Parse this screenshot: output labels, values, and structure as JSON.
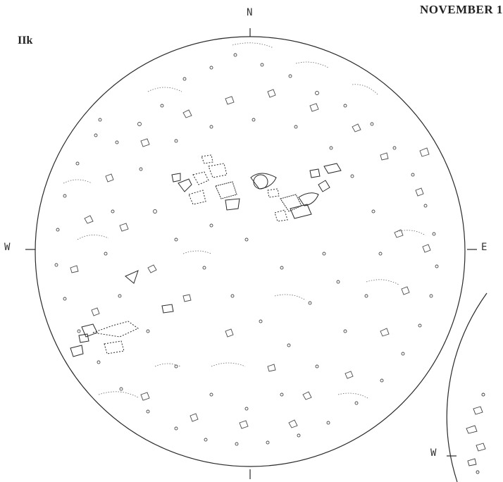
{
  "page": {
    "header_title": "NOVEMBER 1",
    "panel_label": "IIk"
  },
  "main_disk": {
    "compass_labels": {
      "north": "N",
      "west": "W",
      "east": "E"
    }
  },
  "secondary_disk": {
    "compass_labels": {
      "west": "W"
    }
  },
  "colors": {
    "line": "#2a2a2a",
    "faint_line": "#6a6a6a",
    "background": "#ffffff"
  }
}
